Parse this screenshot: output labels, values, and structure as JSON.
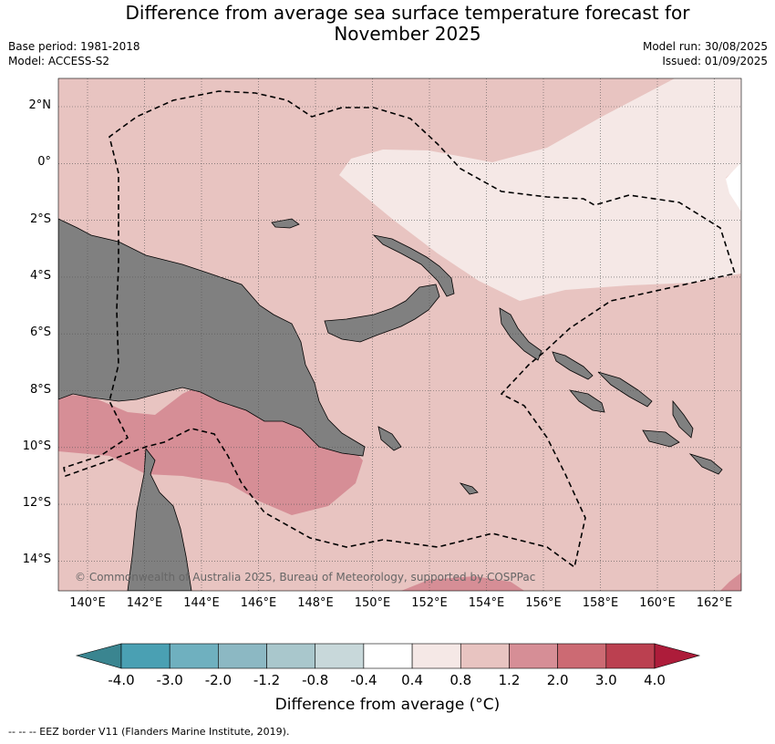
{
  "header": {
    "title_line1": "Difference from average sea surface temperature forecast for",
    "title_line2": "November 2025",
    "base_period": "Base period: 1981-2018",
    "model": "Model: ACCESS-S2",
    "model_run": "Model run: 30/08/2025",
    "issued": "Issued: 01/09/2025"
  },
  "map": {
    "lat_labels": [
      "2°N",
      "0°",
      "2°S",
      "4°S",
      "6°S",
      "8°S",
      "10°S",
      "12°S",
      "14°S"
    ],
    "lon_labels": [
      "140°E",
      "142°E",
      "144°E",
      "146°E",
      "148°E",
      "150°E",
      "152°E",
      "154°E",
      "156°E",
      "158°E",
      "160°E",
      "162°E"
    ],
    "copyright": "© Commonwealth of Australia 2025, Bureau of Meteorology, supported by COSPPac",
    "colors": {
      "background_anomaly": "#e8c4c1",
      "low_anomaly": "#f5e8e6",
      "high_anomaly": "#d68e96",
      "land": "#808080"
    }
  },
  "colorbar": {
    "labels": [
      "-4.0",
      "-3.0",
      "-2.0",
      "-1.2",
      "-0.8",
      "-0.4",
      "0.4",
      "0.8",
      "1.2",
      "2.0",
      "3.0",
      "4.0"
    ],
    "colors": [
      "#4aa0b3",
      "#6fb0bf",
      "#8cb8c3",
      "#a9c7cc",
      "#c8d8da",
      "#ffffff",
      "#f5e8e6",
      "#e8c4c1",
      "#d68e96",
      "#cc6a73",
      "#bb4050"
    ],
    "low_extend_color": "#3a8590",
    "high_extend_color": "#ad1c3a",
    "title": "Difference from average (°C)"
  },
  "footnote": "-- -- -- EEZ border V11 (Flanders Marine Institute, 2019)."
}
